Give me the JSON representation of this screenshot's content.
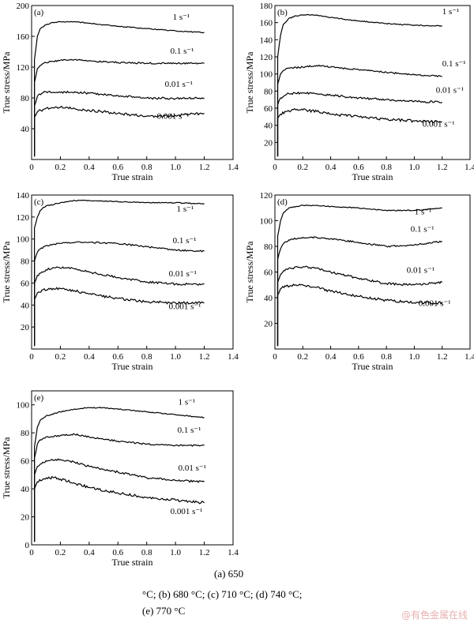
{
  "caption": {
    "line1": "(a)  650",
    "line2": "°C; (b) 680 °C; (c) 710 °C; (d) 740 °C;",
    "line3": "(e) 770 °C"
  },
  "watermark": "@有色金属在线",
  "chart_data": [
    {
      "type": "line",
      "panel": "(a)",
      "xlabel": "True strain",
      "ylabel": "True stress/MPa",
      "xlim": [
        0,
        1.4
      ],
      "ylim": [
        0,
        200
      ],
      "xticks": [
        "0",
        "0.2",
        "0.4",
        "0.6",
        "0.8",
        "1.0",
        "1.2",
        "1.4"
      ],
      "yticks": [
        "40",
        "80",
        "120",
        "160",
        "200"
      ],
      "series": [
        {
          "name": "1 s⁻¹",
          "x": [
            0.02,
            0.04,
            0.06,
            0.1,
            0.15,
            0.2,
            0.3,
            0.4,
            0.6,
            0.8,
            1.0,
            1.2
          ],
          "y": [
            130,
            160,
            170,
            175,
            178,
            179,
            179,
            177,
            173,
            170,
            167,
            165
          ]
        },
        {
          "name": "0.1 s⁻¹",
          "x": [
            0.02,
            0.04,
            0.06,
            0.1,
            0.2,
            0.3,
            0.4,
            0.6,
            0.8,
            1.0,
            1.2
          ],
          "y": [
            100,
            118,
            122,
            126,
            129,
            130,
            128,
            126,
            125,
            125,
            125
          ]
        },
        {
          "name": "0.01 s⁻¹",
          "x": [
            0.02,
            0.04,
            0.07,
            0.1,
            0.2,
            0.3,
            0.4,
            0.6,
            0.8,
            1.0,
            1.2
          ],
          "y": [
            70,
            82,
            86,
            88,
            87,
            88,
            86,
            83,
            80,
            79,
            80
          ]
        },
        {
          "name": "0.001 s⁻¹",
          "x": [
            0.02,
            0.04,
            0.08,
            0.15,
            0.2,
            0.3,
            0.4,
            0.6,
            0.8,
            1.0,
            1.2
          ],
          "y": [
            55,
            62,
            65,
            67,
            68,
            66,
            64,
            60,
            56,
            57,
            60
          ]
        }
      ]
    },
    {
      "type": "line",
      "panel": "(b)",
      "xlabel": "True strain",
      "ylabel": "True stress/MPa",
      "xlim": [
        0,
        1.4
      ],
      "ylim": [
        0,
        180
      ],
      "xticks": [
        "0",
        "0.2",
        "0.4",
        "0.6",
        "0.8",
        "1.0",
        "1.2",
        "1.4"
      ],
      "yticks": [
        "20",
        "40",
        "60",
        "80",
        "100",
        "120",
        "140",
        "160",
        "180"
      ],
      "series": [
        {
          "name": "1 s⁻¹",
          "x": [
            0.02,
            0.04,
            0.06,
            0.1,
            0.15,
            0.2,
            0.3,
            0.4,
            0.6,
            0.8,
            1.0,
            1.2
          ],
          "y": [
            120,
            145,
            158,
            165,
            168,
            169,
            169,
            166,
            162,
            159,
            157,
            156
          ]
        },
        {
          "name": "0.1 s⁻¹",
          "x": [
            0.02,
            0.04,
            0.06,
            0.1,
            0.2,
            0.3,
            0.4,
            0.6,
            0.8,
            1.0,
            1.2
          ],
          "y": [
            88,
            100,
            104,
            107,
            108,
            110,
            108,
            105,
            102,
            99,
            97
          ]
        },
        {
          "name": "0.01 s⁻¹",
          "x": [
            0.02,
            0.04,
            0.07,
            0.1,
            0.2,
            0.3,
            0.4,
            0.6,
            0.8,
            1.0,
            1.2
          ],
          "y": [
            64,
            72,
            75,
            77,
            78,
            77,
            75,
            72,
            70,
            68,
            67
          ]
        },
        {
          "name": "0.001 s⁻¹",
          "x": [
            0.02,
            0.04,
            0.08,
            0.15,
            0.2,
            0.3,
            0.4,
            0.6,
            0.8,
            1.0,
            1.2
          ],
          "y": [
            48,
            53,
            56,
            58,
            58,
            56,
            53,
            50,
            47,
            45,
            44
          ]
        }
      ]
    },
    {
      "type": "line",
      "panel": "(c)",
      "xlabel": "True strain",
      "ylabel": "True stress/MPa",
      "xlim": [
        0,
        1.4
      ],
      "ylim": [
        0,
        140
      ],
      "xticks": [
        "0",
        "0.2",
        "0.4",
        "0.6",
        "0.8",
        "1.0",
        "1.2",
        "1.4"
      ],
      "yticks": [
        "20",
        "40",
        "60",
        "80",
        "100",
        "120",
        "140"
      ],
      "series": [
        {
          "name": "1 s⁻¹",
          "x": [
            0.02,
            0.04,
            0.06,
            0.1,
            0.2,
            0.3,
            0.4,
            0.6,
            0.8,
            1.0,
            1.2
          ],
          "y": [
            110,
            120,
            126,
            130,
            133,
            135,
            135,
            134,
            133,
            133,
            132
          ]
        },
        {
          "name": "0.1 s⁻¹",
          "x": [
            0.02,
            0.04,
            0.06,
            0.1,
            0.2,
            0.3,
            0.4,
            0.6,
            0.8,
            1.0,
            1.2
          ],
          "y": [
            80,
            88,
            91,
            94,
            96,
            97,
            97,
            96,
            93,
            90,
            89
          ]
        },
        {
          "name": "0.01 s⁻¹",
          "x": [
            0.02,
            0.04,
            0.07,
            0.1,
            0.15,
            0.25,
            0.4,
            0.6,
            0.8,
            1.0,
            1.2
          ],
          "y": [
            60,
            67,
            70,
            72,
            74,
            74,
            70,
            65,
            61,
            59,
            59
          ]
        },
        {
          "name": "0.001 s⁻¹",
          "x": [
            0.02,
            0.04,
            0.08,
            0.15,
            0.2,
            0.3,
            0.4,
            0.6,
            0.8,
            1.0,
            1.2
          ],
          "y": [
            45,
            51,
            54,
            55,
            55,
            53,
            50,
            46,
            43,
            42,
            42
          ]
        }
      ]
    },
    {
      "type": "line",
      "panel": "(d)",
      "xlabel": "True strain",
      "ylabel": "True stress/MPa",
      "xlim": [
        0,
        1.4
      ],
      "ylim": [
        0,
        120
      ],
      "xticks": [
        "0",
        "0.2",
        "0.4",
        "0.6",
        "0.8",
        "1.0",
        "1.2",
        "1.4"
      ],
      "yticks": [
        "20",
        "40",
        "60",
        "80",
        "100",
        "120"
      ],
      "series": [
        {
          "name": "1 s⁻¹",
          "x": [
            0.02,
            0.04,
            0.06,
            0.1,
            0.2,
            0.3,
            0.4,
            0.6,
            0.8,
            1.0,
            1.2
          ],
          "y": [
            88,
            100,
            106,
            110,
            112,
            112,
            111,
            110,
            108,
            108,
            110
          ]
        },
        {
          "name": "0.1 s⁻¹",
          "x": [
            0.02,
            0.04,
            0.06,
            0.1,
            0.2,
            0.3,
            0.4,
            0.6,
            0.8,
            1.0,
            1.2
          ],
          "y": [
            70,
            78,
            82,
            85,
            87,
            87,
            86,
            83,
            80,
            81,
            84
          ]
        },
        {
          "name": "0.01 s⁻¹",
          "x": [
            0.02,
            0.04,
            0.07,
            0.1,
            0.2,
            0.3,
            0.4,
            0.6,
            0.8,
            1.0,
            1.2
          ],
          "y": [
            52,
            58,
            61,
            63,
            64,
            63,
            60,
            55,
            51,
            50,
            52
          ]
        },
        {
          "name": "0.001 s⁻¹",
          "x": [
            0.02,
            0.04,
            0.08,
            0.15,
            0.2,
            0.3,
            0.4,
            0.6,
            0.8,
            1.0,
            1.2
          ],
          "y": [
            42,
            47,
            49,
            50,
            50,
            48,
            45,
            41,
            38,
            36,
            36
          ]
        }
      ]
    },
    {
      "type": "line",
      "panel": "(e)",
      "xlabel": "True strain",
      "ylabel": "True stress/MPa",
      "xlim": [
        0,
        1.4
      ],
      "ylim": [
        0,
        110
      ],
      "xticks": [
        "0",
        "0.2",
        "0.4",
        "0.6",
        "0.8",
        "1.0",
        "1.2",
        "1.4"
      ],
      "yticks": [
        "0",
        "20",
        "40",
        "60",
        "80",
        "100"
      ],
      "series": [
        {
          "name": "1 s⁻¹",
          "x": [
            0.02,
            0.04,
            0.06,
            0.1,
            0.2,
            0.3,
            0.4,
            0.5,
            0.6,
            0.8,
            1.0,
            1.2
          ],
          "y": [
            70,
            84,
            89,
            92,
            95,
            97,
            98,
            98,
            97,
            95,
            93,
            91
          ]
        },
        {
          "name": "0.1 s⁻¹",
          "x": [
            0.02,
            0.04,
            0.06,
            0.1,
            0.2,
            0.3,
            0.4,
            0.6,
            0.8,
            1.0,
            1.2
          ],
          "y": [
            62,
            72,
            75,
            77,
            78,
            79,
            77,
            74,
            72,
            71,
            71
          ]
        },
        {
          "name": "0.01 s⁻¹",
          "x": [
            0.02,
            0.04,
            0.07,
            0.1,
            0.2,
            0.3,
            0.4,
            0.6,
            0.8,
            1.0,
            1.2
          ],
          "y": [
            50,
            56,
            58,
            60,
            61,
            59,
            56,
            52,
            48,
            46,
            45
          ]
        },
        {
          "name": "0.001 s⁻¹",
          "x": [
            0.02,
            0.04,
            0.08,
            0.15,
            0.2,
            0.3,
            0.4,
            0.6,
            0.8,
            1.0,
            1.2
          ],
          "y": [
            40,
            45,
            47,
            48,
            47,
            44,
            41,
            37,
            34,
            32,
            30
          ]
        }
      ]
    }
  ]
}
